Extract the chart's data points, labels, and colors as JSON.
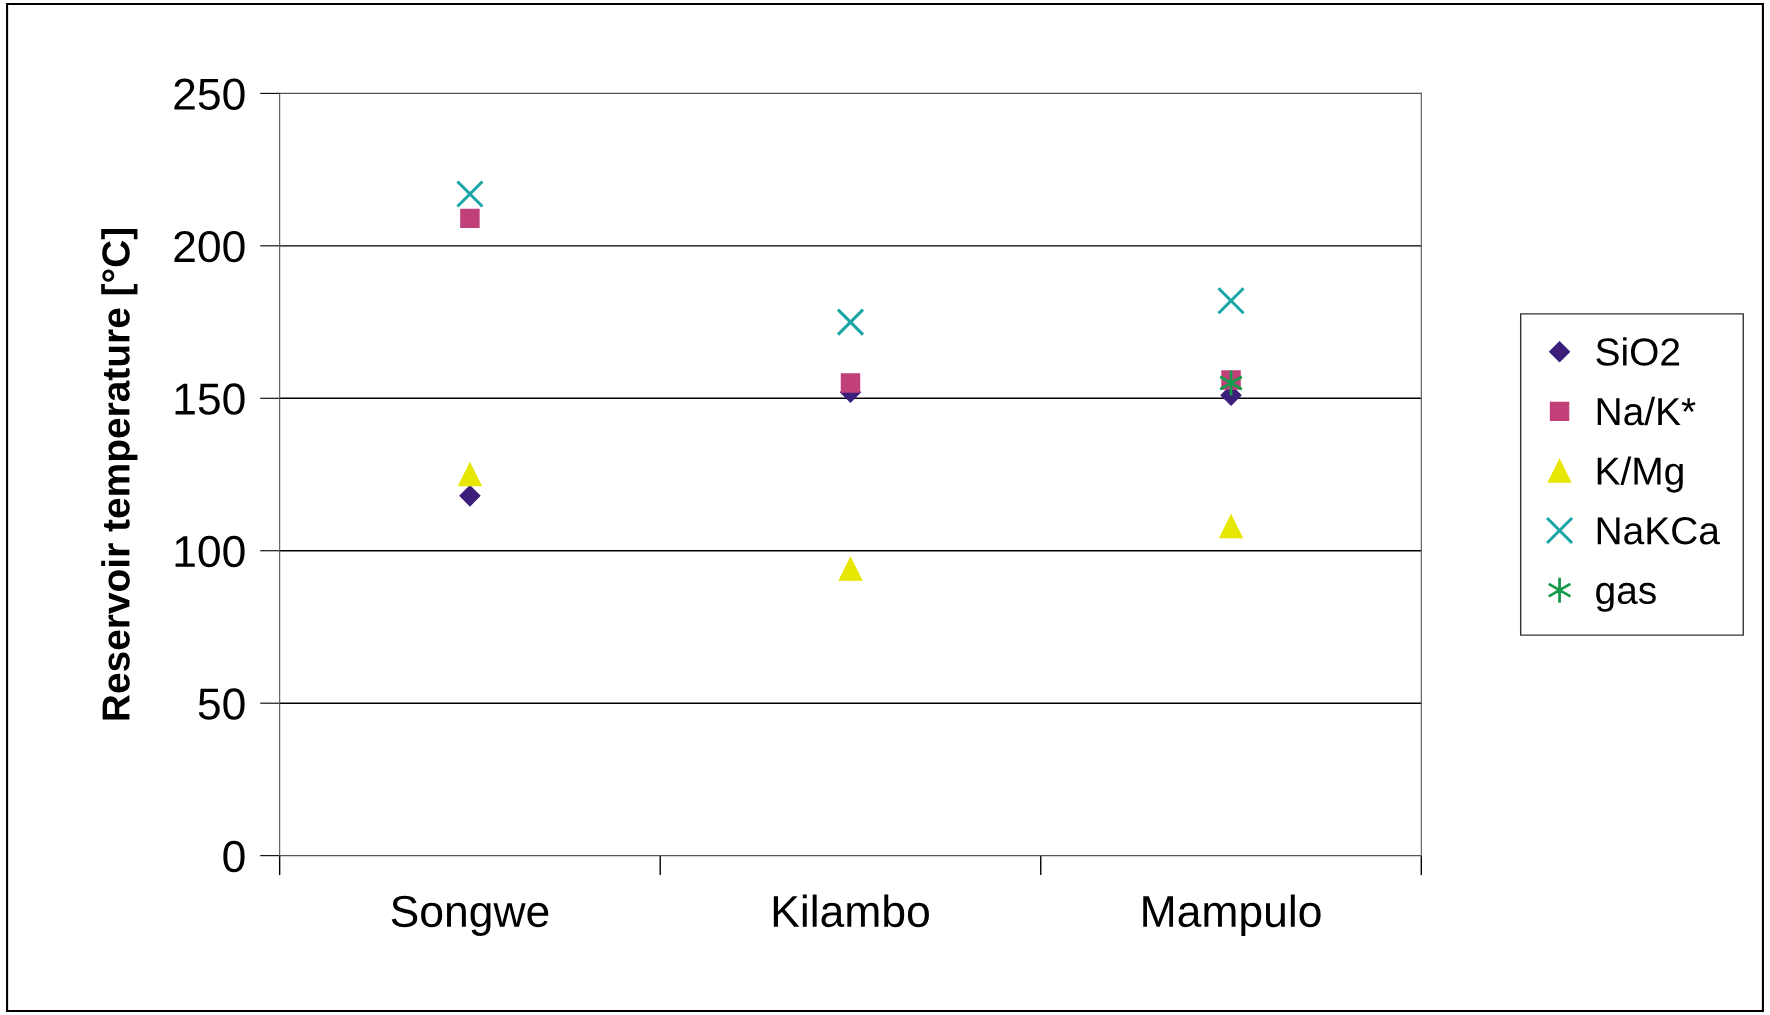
{
  "chart_data": {
    "type": "scatter",
    "ylabel": "Reservoir temperature [°C]",
    "categories": [
      "Songwe",
      "Kilambo",
      "Mampulo"
    ],
    "series": [
      {
        "name": "SiO2",
        "color": "#3b1f7a",
        "marker": "diamond",
        "values": [
          118,
          152,
          151
        ]
      },
      {
        "name": "Na/K*",
        "color": "#c2407a",
        "marker": "square",
        "values": [
          209,
          155,
          156
        ]
      },
      {
        "name": "K/Mg",
        "color": "#e6e600",
        "marker": "triangle",
        "values": [
          125,
          94,
          108
        ]
      },
      {
        "name": "NaKCa",
        "color": "#1aa6a6",
        "marker": "cross",
        "values": [
          217,
          175,
          182
        ]
      },
      {
        "name": "gas",
        "color": "#139a4a",
        "marker": "cross",
        "values": [
          null,
          null,
          155
        ]
      }
    ],
    "ylim": [
      0,
      250
    ],
    "yticks": [
      0,
      50,
      100,
      150,
      200,
      250
    ],
    "grid": "y",
    "legend": "right"
  }
}
